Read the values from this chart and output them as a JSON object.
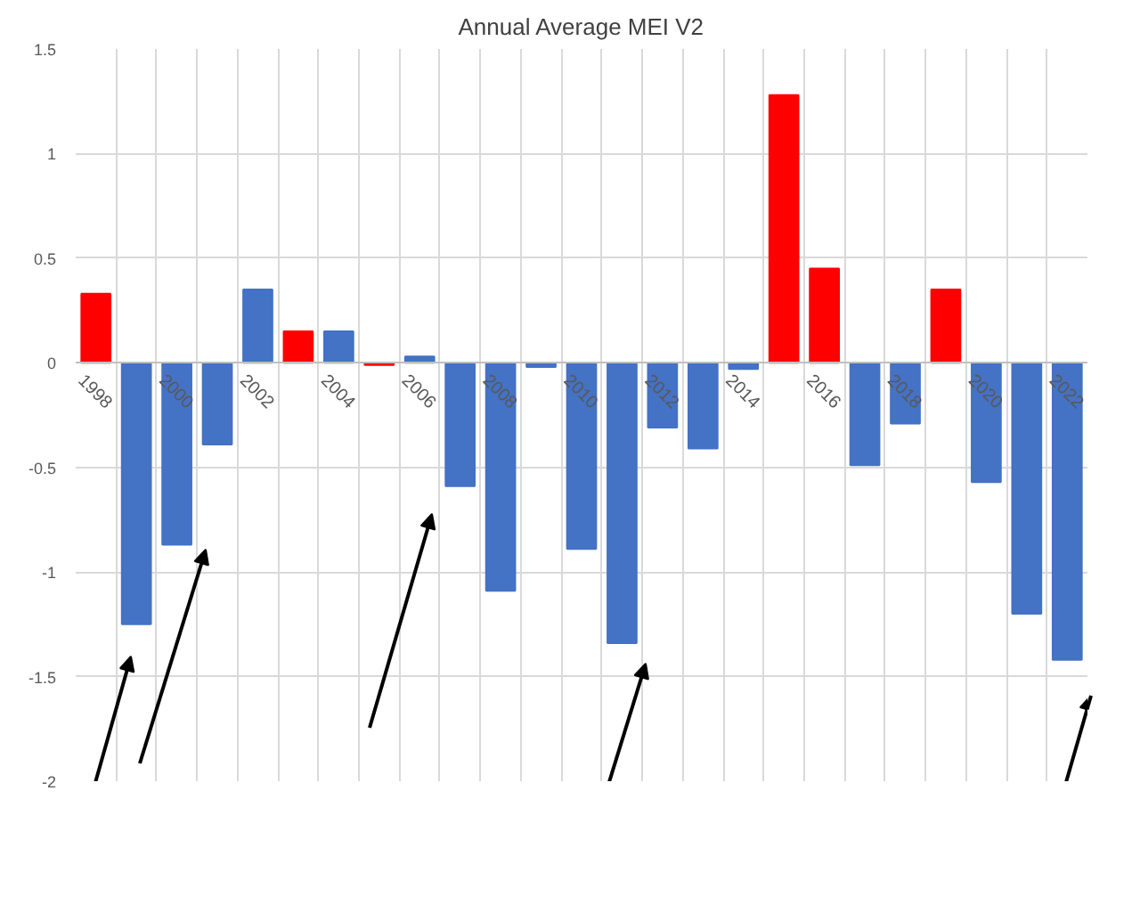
{
  "chart_data": {
    "type": "bar",
    "title": "Annual Average MEI V2",
    "categories": [
      "1998",
      null,
      "2000",
      null,
      "2002",
      null,
      "2004",
      null,
      "2006",
      null,
      "2008",
      null,
      "2010",
      null,
      "2012",
      null,
      "2014",
      null,
      "2016",
      null,
      "2018",
      null,
      "2020",
      null,
      "2022"
    ],
    "values": [
      0.33,
      -1.25,
      -0.87,
      -0.39,
      0.35,
      0.15,
      0.15,
      -0.01,
      0.03,
      -0.59,
      -1.09,
      -0.02,
      -0.89,
      -1.34,
      -0.31,
      -0.41,
      -0.03,
      1.28,
      0.45,
      -0.49,
      -0.29,
      0.35,
      -0.57,
      -1.2,
      -1.42
    ],
    "colors": [
      "#ff0000",
      "#4472c4",
      "#4472c4",
      "#4472c4",
      "#4472c4",
      "#ff0000",
      "#4472c4",
      "#ff0000",
      "#4472c4",
      "#4472c4",
      "#4472c4",
      "#4472c4",
      "#4472c4",
      "#4472c4",
      "#4472c4",
      "#4472c4",
      "#4472c4",
      "#ff0000",
      "#ff0000",
      "#4472c4",
      "#4472c4",
      "#ff0000",
      "#4472c4",
      "#4472c4",
      "#4472c4"
    ],
    "ylim": [
      -2,
      1.5
    ],
    "yticks": [
      -2,
      -1.5,
      -1,
      -0.5,
      0,
      0.5,
      1,
      1.5
    ],
    "grid": true
  }
}
